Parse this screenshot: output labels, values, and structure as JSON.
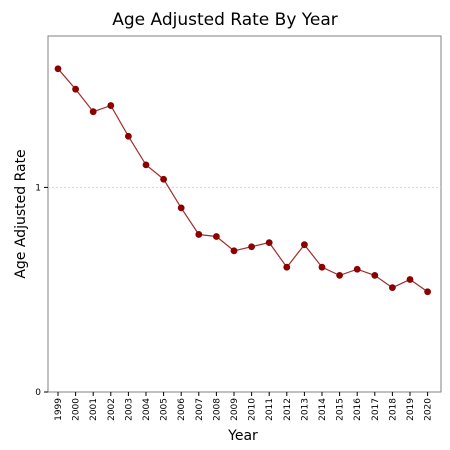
{
  "chart_data": {
    "type": "line",
    "title": "Age Adjusted Rate By Year",
    "xlabel": "Year",
    "ylabel": "Age Adjusted Rate",
    "categories": [
      "1999",
      "2000",
      "2001",
      "2002",
      "2003",
      "2004",
      "2005",
      "2006",
      "2007",
      "2008",
      "2009",
      "2010",
      "2011",
      "2012",
      "2013",
      "2014",
      "2015",
      "2016",
      "2017",
      "2018",
      "2019",
      "2020"
    ],
    "series": [
      {
        "values": [
          1.58,
          1.48,
          1.37,
          1.4,
          1.25,
          1.11,
          1.04,
          0.9,
          0.77,
          0.76,
          0.69,
          0.71,
          0.73,
          0.61,
          0.72,
          0.61,
          0.57,
          0.6,
          0.57,
          0.51,
          0.55,
          0.49
        ],
        "color": "#8b0000"
      }
    ],
    "ylim": [
      0,
      1.74
    ],
    "yticks": [
      0,
      1
    ],
    "grid": {
      "horizontal_at_ticks": true,
      "vertical": false
    },
    "legend": "none",
    "colors": {
      "line": "#a52a2a",
      "marker": "#8b0000",
      "grid": "#d8d8d8",
      "frame": "#808080"
    }
  }
}
